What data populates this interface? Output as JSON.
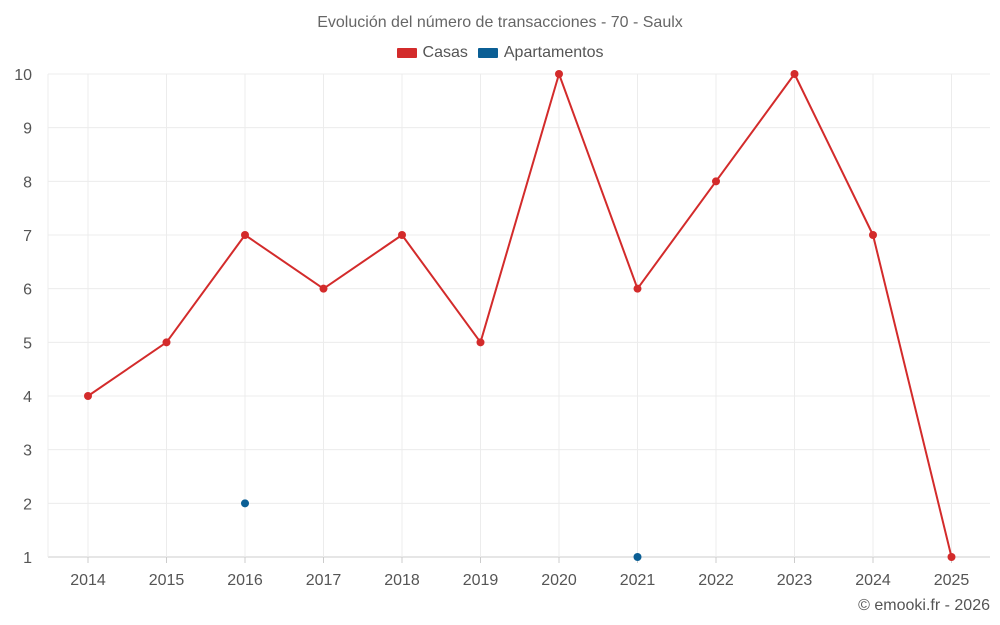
{
  "chart_data": {
    "type": "line",
    "title": "Evolución del número de transacciones - 70 - Saulx",
    "xlabel": "",
    "ylabel": "",
    "categories": [
      "2014",
      "2015",
      "2016",
      "2017",
      "2018",
      "2019",
      "2020",
      "2021",
      "2022",
      "2023",
      "2024",
      "2025"
    ],
    "ylim": [
      1,
      10
    ],
    "yticks": [
      1,
      2,
      3,
      4,
      5,
      6,
      7,
      8,
      9,
      10
    ],
    "grid": true,
    "legend_position": "top-center",
    "series": [
      {
        "name": "Casas",
        "color": "#d32b2b",
        "values": [
          4,
          5,
          7,
          6,
          7,
          5,
          10,
          6,
          8,
          10,
          7,
          1
        ]
      },
      {
        "name": "Apartamentos",
        "color": "#0b5f95",
        "values": [
          null,
          null,
          2,
          null,
          null,
          null,
          null,
          1,
          null,
          null,
          null,
          null
        ]
      }
    ]
  },
  "credit": "© emooki.fr - 2026"
}
